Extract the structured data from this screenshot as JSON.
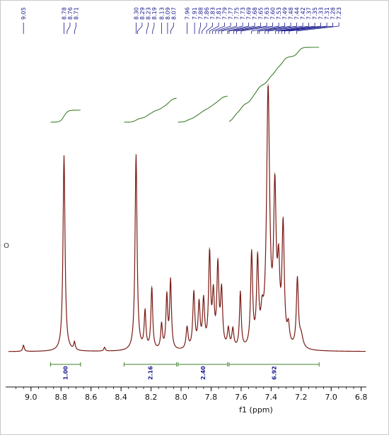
{
  "chart_data": {
    "type": "line",
    "title": "",
    "xlabel": "f1 (ppm)",
    "ylabel": "",
    "x_reversed": true,
    "xlim": [
      9.15,
      6.77
    ],
    "ylim": [
      0,
      1
    ],
    "x_ticks": [
      "9.0",
      "8.8",
      "8.6",
      "8.4",
      "8.2",
      "8.0",
      "7.8",
      "7.6",
      "7.4",
      "7.2",
      "7.0",
      "6.8"
    ],
    "x_tick_values": [
      9.0,
      8.8,
      8.6,
      8.4,
      8.2,
      8.0,
      7.8,
      7.6,
      7.4,
      7.2,
      7.0,
      6.8
    ],
    "peak_labels": [
      "9.05",
      "8.78",
      "8.76",
      "8.71",
      "8.30",
      "8.29",
      "8.23",
      "8.19",
      "8.13",
      "8.09",
      "8.07",
      "7.96",
      "7.91",
      "7.88",
      "7.86",
      "7.83",
      "7.81",
      "7.79",
      "7.77",
      "7.75",
      "7.73",
      "7.69",
      "7.68",
      "7.65",
      "7.63",
      "7.60",
      "7.53",
      "7.49",
      "7.48",
      "7.44",
      "7.42",
      "7.37",
      "7.35",
      "7.33",
      "7.31",
      "7.28",
      "7.23"
    ],
    "peaks": [
      {
        "x": 9.05,
        "y": 0.02,
        "w": 0.006
      },
      {
        "x": 8.78,
        "y": 0.63,
        "w": 0.008
      },
      {
        "x": 8.71,
        "y": 0.025,
        "w": 0.006
      },
      {
        "x": 8.51,
        "y": 0.012,
        "w": 0.006
      },
      {
        "x": 8.3,
        "y": 0.63,
        "w": 0.008
      },
      {
        "x": 8.24,
        "y": 0.12,
        "w": 0.007
      },
      {
        "x": 8.195,
        "y": 0.2,
        "w": 0.007
      },
      {
        "x": 8.13,
        "y": 0.08,
        "w": 0.007
      },
      {
        "x": 8.095,
        "y": 0.17,
        "w": 0.007
      },
      {
        "x": 8.07,
        "y": 0.22,
        "w": 0.007
      },
      {
        "x": 7.96,
        "y": 0.07,
        "w": 0.008
      },
      {
        "x": 7.915,
        "y": 0.18,
        "w": 0.008
      },
      {
        "x": 7.88,
        "y": 0.14,
        "w": 0.008
      },
      {
        "x": 7.85,
        "y": 0.15,
        "w": 0.008
      },
      {
        "x": 7.81,
        "y": 0.3,
        "w": 0.008
      },
      {
        "x": 7.785,
        "y": 0.16,
        "w": 0.008
      },
      {
        "x": 7.755,
        "y": 0.26,
        "w": 0.008
      },
      {
        "x": 7.73,
        "y": 0.18,
        "w": 0.008
      },
      {
        "x": 7.685,
        "y": 0.06,
        "w": 0.008
      },
      {
        "x": 7.655,
        "y": 0.06,
        "w": 0.008
      },
      {
        "x": 7.605,
        "y": 0.18,
        "w": 0.007
      },
      {
        "x": 7.53,
        "y": 0.3,
        "w": 0.008
      },
      {
        "x": 7.49,
        "y": 0.27,
        "w": 0.008
      },
      {
        "x": 7.46,
        "y": 0.08,
        "w": 0.01
      },
      {
        "x": 7.42,
        "y": 0.82,
        "w": 0.012
      },
      {
        "x": 7.375,
        "y": 0.48,
        "w": 0.01
      },
      {
        "x": 7.35,
        "y": 0.22,
        "w": 0.009
      },
      {
        "x": 7.32,
        "y": 0.38,
        "w": 0.009
      },
      {
        "x": 7.285,
        "y": 0.06,
        "w": 0.009
      },
      {
        "x": 7.225,
        "y": 0.22,
        "w": 0.008
      },
      {
        "x": 7.2,
        "y": 0.04,
        "w": 0.015
      }
    ],
    "integrals": [
      {
        "label": "1.00",
        "x_start": 8.87,
        "x_end": 8.67
      },
      {
        "label": "2.16",
        "x_start": 8.38,
        "x_end": 8.03
      },
      {
        "label": "2.40",
        "x_start": 8.02,
        "x_end": 7.69
      },
      {
        "label": "6.92",
        "x_start": 7.68,
        "x_end": 7.08
      }
    ],
    "colors": {
      "spectrum": "#7a1a14",
      "integral": "#3f7f2a",
      "labels": "#1a1a8c"
    }
  },
  "side_mark": "O"
}
